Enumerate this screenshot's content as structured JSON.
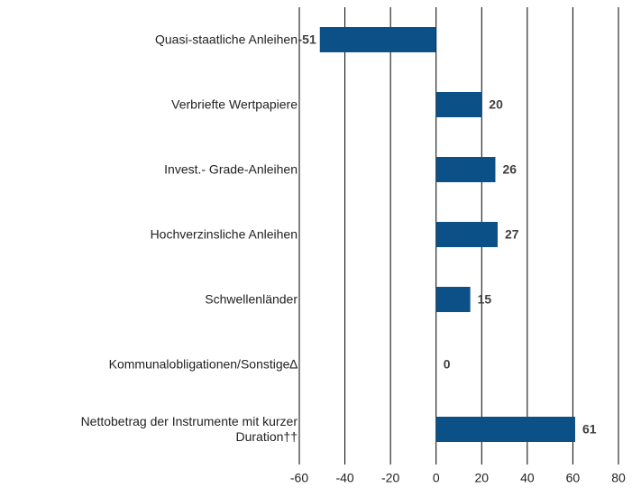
{
  "chart_data": {
    "type": "hbar",
    "categories": [
      "Quasi-staatliche Anleihen",
      "Verbriefte Wertpapiere",
      "Invest.- Grade-Anleihen",
      "Hochverzinsliche Anleihen",
      "Schwellenländer",
      "Kommunalobligationen/Sonstige∆",
      "Nettobetrag der Instrumente mit kurzer Duration††"
    ],
    "values": [
      -51,
      20,
      26,
      27,
      15,
      0,
      61
    ],
    "color": "#0b5086",
    "xlim": [
      -60,
      80
    ],
    "xticks": [
      -60,
      -40,
      -20,
      0,
      20,
      40,
      60,
      80
    ],
    "grid": true
  }
}
